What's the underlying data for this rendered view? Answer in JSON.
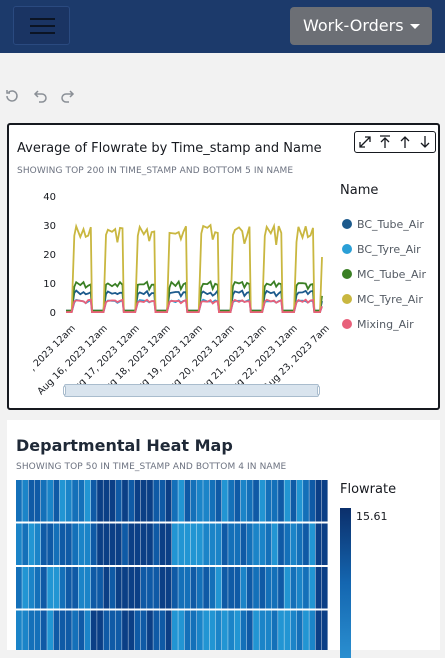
{
  "header": {
    "menu_icon": "hamburger-icon",
    "dashboard_select": "Work-Orders"
  },
  "toolbar": {
    "icons": [
      "refresh-icon",
      "undo-icon",
      "redo-icon"
    ]
  },
  "line_visual": {
    "title": "Average of Flowrate by Time_stamp and Name",
    "subtitle": "SHOWING TOP 200 IN TIME_STAMP AND BOTTOM 5 IN NAME",
    "legend_title": "Name",
    "legend": [
      {
        "label": "BC_Tube_Air",
        "color": "#1c5a8c"
      },
      {
        "label": "BC_Tyre_Air",
        "color": "#2a9fd6"
      },
      {
        "label": "MC_Tube_Air",
        "color": "#3a7f24"
      },
      {
        "label": "MC_Tyre_Air",
        "color": "#c9b740"
      },
      {
        "label": "Mixing_Air",
        "color": "#e8607a"
      }
    ],
    "controls": [
      "expand-icon",
      "scroll-top-icon",
      "sort-up-icon",
      "sort-down-icon"
    ]
  },
  "heatmap_visual": {
    "title": "Departmental Heat Map",
    "subtitle": "SHOWING TOP 50 IN TIME_STAMP AND BOTTOM 4 IN NAME",
    "legend_title": "Flowrate",
    "legend_max": "15.61"
  },
  "chart_data": {
    "type": "line",
    "title": "Average of Flowrate by Time_stamp and Name",
    "xlabel": "",
    "ylabel": "",
    "ylim": [
      0,
      40
    ],
    "yticks": [
      "40",
      "30",
      "20",
      "10",
      "0"
    ],
    "categories": [
      ", 2023 12am",
      "Aug 16, 2023 12am",
      "Aug 17, 2023 12am",
      "Aug 18, 2023 12am",
      "Aug 19, 2023 12am",
      "Aug 20, 2023 12am",
      "Aug 21, 2023 12am",
      "Aug 22, 2023 12am",
      "Aug 23, 2023 7am"
    ],
    "series": [
      {
        "name": "BC_Tube_Air",
        "color": "#1c5a8c",
        "peak": 8,
        "base": 1.5
      },
      {
        "name": "BC_Tyre_Air",
        "color": "#2a9fd6",
        "peak": 5,
        "base": 1
      },
      {
        "name": "MC_Tube_Air",
        "color": "#3a7f24",
        "peak": 11,
        "base": 1.5
      },
      {
        "name": "MC_Tyre_Air",
        "color": "#c9b740",
        "peak": 30,
        "base": 1
      },
      {
        "name": "Mixing_Air",
        "color": "#e8607a",
        "peak": 5,
        "base": 1
      }
    ],
    "grid": false,
    "legend_position": "right"
  }
}
